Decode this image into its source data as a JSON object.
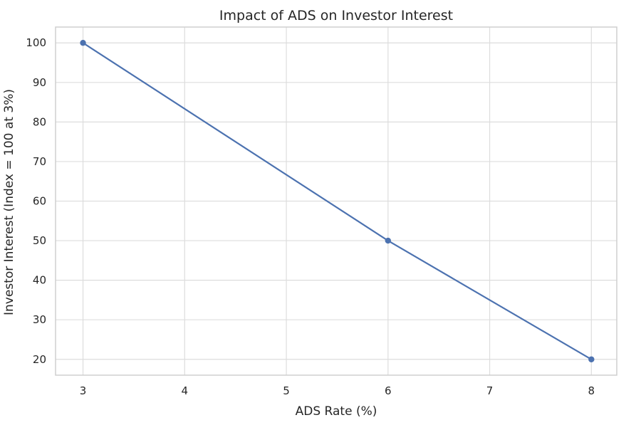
{
  "chart_data": {
    "type": "line",
    "title": "Impact of ADS on Investor Interest",
    "xlabel": "ADS Rate (%)",
    "ylabel": "Investor Interest (Index = 100 at 3%)",
    "x_ticks": [
      "3",
      "4",
      "5",
      "6",
      "7",
      "8"
    ],
    "y_ticks": [
      "20",
      "30",
      "40",
      "50",
      "60",
      "70",
      "80",
      "90",
      "100"
    ],
    "xlim": [
      2.73,
      8.25
    ],
    "ylim": [
      16,
      104
    ],
    "grid": true,
    "series": [
      {
        "x": [
          3,
          6,
          8
        ],
        "y": [
          100,
          50,
          20
        ],
        "color": "#4c72b0",
        "marker": "circle"
      }
    ]
  }
}
